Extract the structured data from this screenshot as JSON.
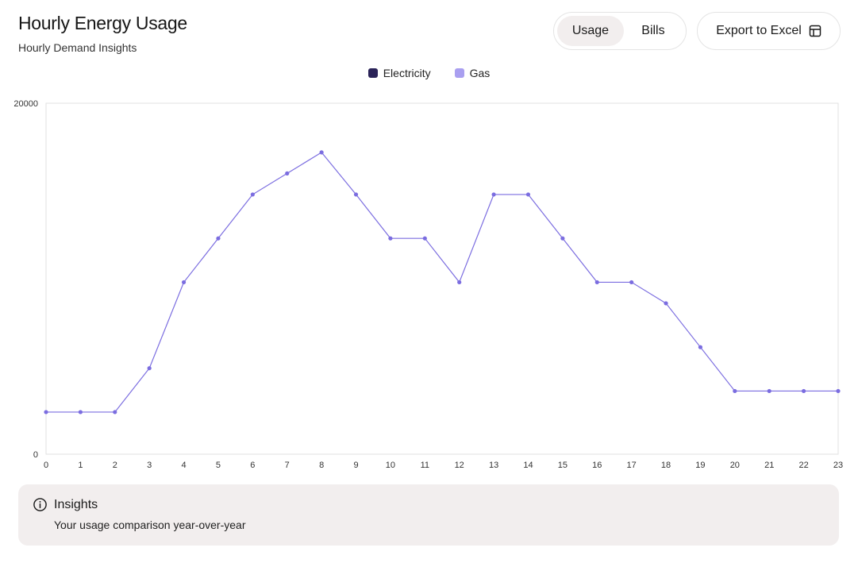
{
  "header": {
    "title": "Hourly Energy Usage",
    "subtitle": "Hourly Demand Insights"
  },
  "toggle": {
    "usage_label": "Usage",
    "bills_label": "Bills",
    "active": "Usage"
  },
  "export": {
    "label": "Export to Excel",
    "icon": "table-icon"
  },
  "legend": {
    "items": [
      {
        "label": "Electricity",
        "color": "#2a2358"
      },
      {
        "label": "Gas",
        "color": "#a99ff0"
      }
    ]
  },
  "insights": {
    "icon": "info-icon",
    "title": "Insights",
    "body": "Your usage comparison year-over-year"
  },
  "chart_data": {
    "type": "line",
    "x": [
      0,
      1,
      2,
      3,
      4,
      5,
      6,
      7,
      8,
      9,
      10,
      11,
      12,
      13,
      14,
      15,
      16,
      17,
      18,
      19,
      20,
      21,
      22,
      23
    ],
    "series": [
      {
        "name": "Gas",
        "color": "#7b6de0",
        "values": [
          2400,
          2400,
          2400,
          4900,
          9800,
          12300,
          14800,
          16000,
          17200,
          14800,
          12300,
          12300,
          9800,
          14800,
          14800,
          12300,
          9800,
          9800,
          8600,
          6100,
          3600,
          3600,
          3600,
          3600
        ]
      }
    ],
    "ylim": [
      0,
      20000
    ],
    "yticks": [
      0,
      20000
    ],
    "xticks": [
      0,
      1,
      2,
      3,
      4,
      5,
      6,
      7,
      8,
      9,
      10,
      11,
      12,
      13,
      14,
      15,
      16,
      17,
      18,
      19,
      20,
      21,
      22,
      23
    ],
    "xlabel": "",
    "ylabel": "",
    "grid": false,
    "legend_position": "top-center"
  }
}
